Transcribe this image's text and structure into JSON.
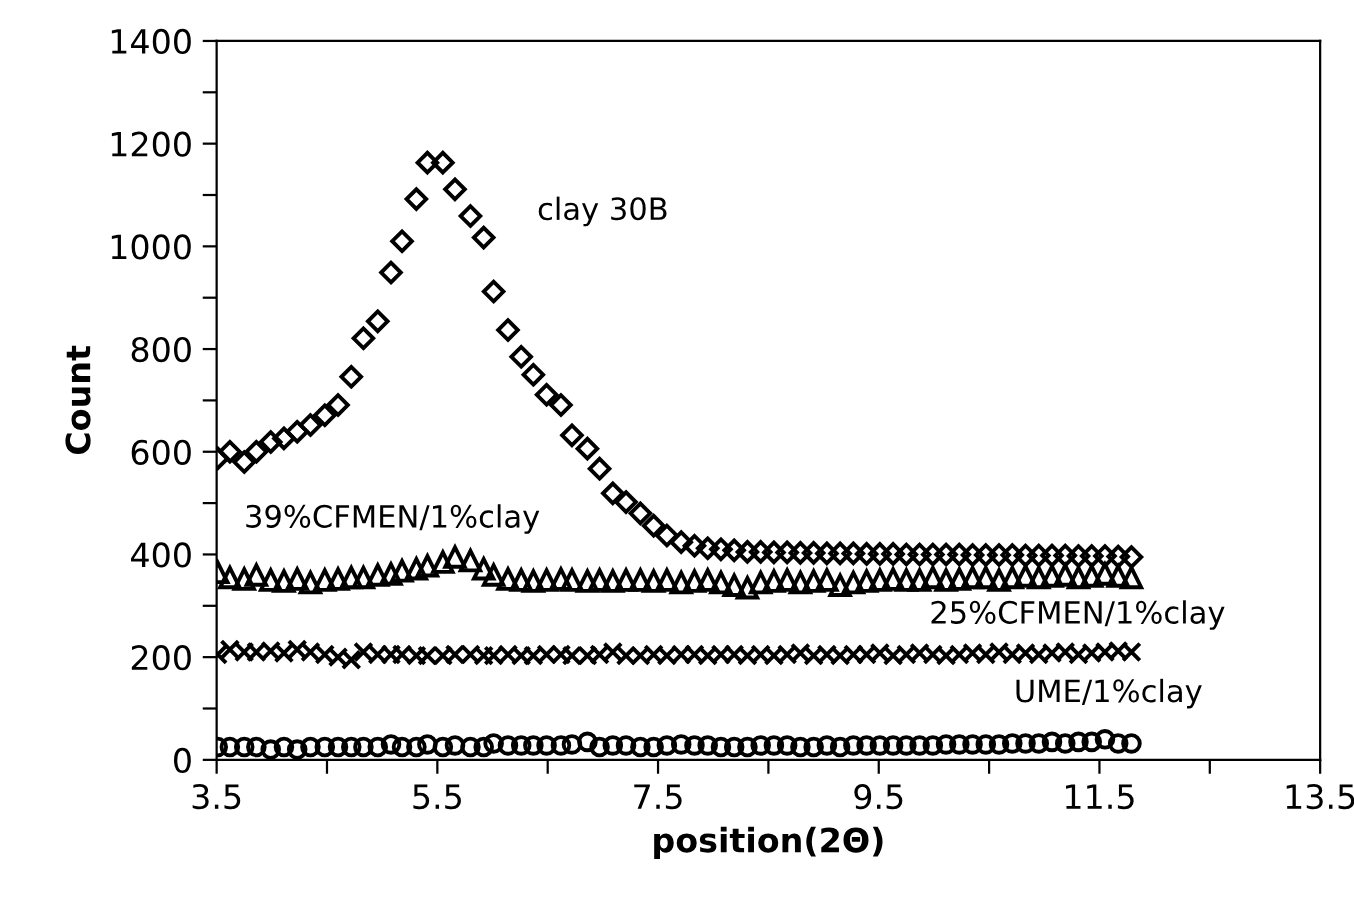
{
  "chart_data": {
    "type": "scatter",
    "xlabel": "position(2Θ)",
    "ylabel": "Count",
    "xlim": [
      3.5,
      13.5
    ],
    "ylim": [
      0,
      1400
    ],
    "xticks": [
      3.5,
      {
        "value": 4.5,
        "label": null
      },
      5.5,
      {
        "value": 6.5,
        "label": null
      },
      7.5,
      {
        "value": 8.5,
        "label": null
      },
      9.5,
      {
        "value": 10.5,
        "label": null
      },
      11.5,
      {
        "value": 12.5,
        "label": null
      },
      13.5
    ],
    "yticks": [
      0,
      {
        "value": 100,
        "label": null
      },
      200,
      {
        "value": 300,
        "label": null
      },
      400,
      {
        "value": 500,
        "label": null
      },
      600,
      {
        "value": 700,
        "label": null
      },
      800,
      {
        "value": 900,
        "label": null
      },
      1000,
      {
        "value": 1100,
        "label": null
      },
      1200,
      {
        "value": 1300,
        "label": null
      },
      1400
    ],
    "grid": false,
    "legend": false,
    "x": [
      3.51,
      3.62,
      3.75,
      3.86,
      3.99,
      4.11,
      4.23,
      4.35,
      4.48,
      4.6,
      4.72,
      4.83,
      4.96,
      5.08,
      5.18,
      5.31,
      5.41,
      5.55,
      5.66,
      5.8,
      5.92,
      6.01,
      6.14,
      6.26,
      6.37,
      6.49,
      6.62,
      6.72,
      6.86,
      6.97,
      7.09,
      7.21,
      7.34,
      7.46,
      7.58,
      7.71,
      7.83,
      7.95,
      8.07,
      8.19,
      8.31,
      8.43,
      8.55,
      8.67,
      8.79,
      8.91,
      9.03,
      9.15,
      9.27,
      9.39,
      9.51,
      9.63,
      9.75,
      9.87,
      9.99,
      10.11,
      10.23,
      10.35,
      10.47,
      10.59,
      10.71,
      10.83,
      10.95,
      11.07,
      11.19,
      11.31,
      11.43,
      11.55,
      11.67,
      11.79
    ],
    "series": [
      {
        "name": "clay 30B",
        "color": "#000000",
        "marker": "diamond",
        "values": [
          587,
          600,
          580,
          600,
          619,
          626,
          639,
          652,
          671,
          691,
          746,
          821,
          854,
          949,
          1010,
          1092,
          1163,
          1163,
          1111,
          1059,
          1017,
          912,
          837,
          785,
          750,
          711,
          691,
          632,
          606,
          567,
          519,
          502,
          480,
          456,
          437,
          424,
          417,
          412,
          410,
          408,
          405,
          405,
          404,
          404,
          403,
          403,
          402,
          402,
          402,
          401,
          401,
          401,
          400,
          400,
          400,
          400,
          400,
          399,
          399,
          399,
          399,
          398,
          398,
          398,
          398,
          397,
          397,
          397,
          396,
          395
        ]
      },
      {
        "name": "39%CFMEN/1%clay",
        "color": "#000000",
        "marker": "triangle",
        "values": [
          365,
          355,
          352,
          360,
          350,
          348,
          352,
          345,
          350,
          352,
          355,
          355,
          360,
          362,
          368,
          372,
          378,
          385,
          395,
          388,
          372,
          360,
          352,
          350,
          348,
          350,
          352,
          350,
          348,
          350,
          348,
          350,
          350,
          348,
          350,
          345,
          348,
          350,
          345,
          340,
          335,
          345,
          348,
          350,
          345,
          348,
          350,
          340,
          345,
          348,
          350,
          352,
          350,
          350,
          355,
          350,
          352,
          355,
          355,
          350,
          355,
          358,
          355,
          358,
          360,
          355,
          358,
          362,
          358,
          355
        ]
      },
      {
        "name": "25%CFMEN/1%clay",
        "color": "#000000",
        "marker": "cross",
        "values": [
          205,
          215,
          210,
          210,
          212,
          208,
          215,
          210,
          205,
          200,
          195,
          210,
          205,
          205,
          205,
          203,
          203,
          203,
          205,
          205,
          203,
          203,
          205,
          203,
          203,
          205,
          205,
          203,
          203,
          205,
          210,
          203,
          203,
          205,
          203,
          205,
          205,
          203,
          205,
          205,
          203,
          205,
          203,
          205,
          208,
          203,
          205,
          203,
          205,
          205,
          208,
          203,
          205,
          208,
          205,
          203,
          205,
          208,
          205,
          210,
          205,
          208,
          205,
          208,
          210,
          205,
          208,
          210,
          212,
          210
        ]
      },
      {
        "name": "UME/1%clay",
        "color": "#000000",
        "marker": "circle",
        "values": [
          25,
          25,
          25,
          25,
          20,
          25,
          20,
          25,
          25,
          25,
          25,
          25,
          25,
          30,
          25,
          25,
          30,
          25,
          28,
          25,
          25,
          32,
          28,
          28,
          28,
          28,
          28,
          30,
          35,
          25,
          28,
          28,
          25,
          25,
          28,
          30,
          28,
          28,
          25,
          25,
          25,
          28,
          28,
          28,
          25,
          25,
          28,
          25,
          28,
          28,
          28,
          28,
          28,
          28,
          28,
          30,
          30,
          30,
          30,
          30,
          32,
          32,
          32,
          35,
          32,
          35,
          35,
          40,
          32,
          32
        ]
      }
    ]
  }
}
